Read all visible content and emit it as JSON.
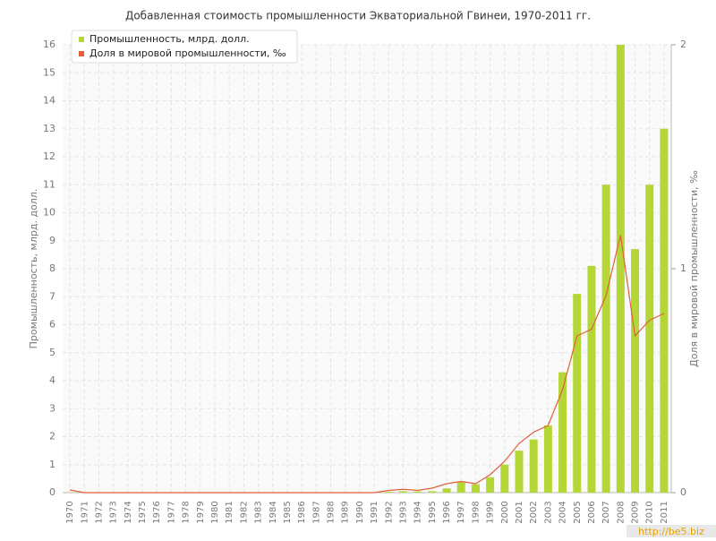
{
  "chart_data": {
    "type": "bar-line",
    "title": "Добавленная стоимость промышленности Экваториальной Гвинеи, 1970-2011 гг.",
    "y_label": "Промышленность, млрд. долл.",
    "y2_label": "Доля в мировой промышленности, ‰",
    "watermark": "http://be5.biz",
    "categories": [
      "1970",
      "1971",
      "1972",
      "1973",
      "1974",
      "1975",
      "1976",
      "1977",
      "1978",
      "1979",
      "1980",
      "1981",
      "1982",
      "1983",
      "1984",
      "1985",
      "1986",
      "1987",
      "1988",
      "1989",
      "1990",
      "1991",
      "1992",
      "1993",
      "1994",
      "1995",
      "1996",
      "1997",
      "1998",
      "1999",
      "2000",
      "2001",
      "2002",
      "2003",
      "2004",
      "2005",
      "2006",
      "2007",
      "2008",
      "2009",
      "2010",
      "2011"
    ],
    "series": [
      {
        "name": "Промышленность, млрд. долл.",
        "color": "#b5d637",
        "type": "bar",
        "values": [
          0.01,
          0.01,
          0.01,
          0.01,
          0.01,
          0.01,
          0.01,
          0.01,
          0.01,
          0.01,
          0.01,
          0.01,
          0.01,
          0.01,
          0.01,
          0.01,
          0.01,
          0.01,
          0.01,
          0.01,
          0.01,
          0.01,
          0.03,
          0.05,
          0.04,
          0.05,
          0.15,
          0.4,
          0.3,
          0.55,
          1.0,
          1.5,
          1.9,
          2.4,
          4.3,
          7.1,
          8.1,
          11,
          16,
          8.7,
          11,
          13
        ]
      },
      {
        "name": "Доля в мировой промышленности, ‰",
        "color": "#e0603a",
        "type": "line",
        "axis": "y2",
        "values": [
          0.012,
          0,
          0,
          0,
          0,
          0,
          0,
          0,
          0,
          0,
          0,
          0,
          0,
          0,
          0,
          0,
          0,
          0,
          0,
          0,
          0,
          0,
          0.01,
          0.015,
          0.01,
          0.02,
          0.04,
          0.05,
          0.04,
          0.08,
          0.14,
          0.22,
          0.27,
          0.3,
          0.46,
          0.7,
          0.73,
          0.88,
          1.15,
          0.7,
          0.77,
          0.8
        ]
      }
    ],
    "ylim": [
      0,
      16
    ],
    "yticks": [
      0,
      1,
      2,
      3,
      4,
      5,
      6,
      7,
      8,
      9,
      10,
      11,
      12,
      13,
      14,
      15,
      16
    ],
    "y2lim": [
      0,
      2
    ],
    "y2ticks": [
      0,
      1,
      2
    ],
    "grid": true,
    "legend": "top-left"
  }
}
